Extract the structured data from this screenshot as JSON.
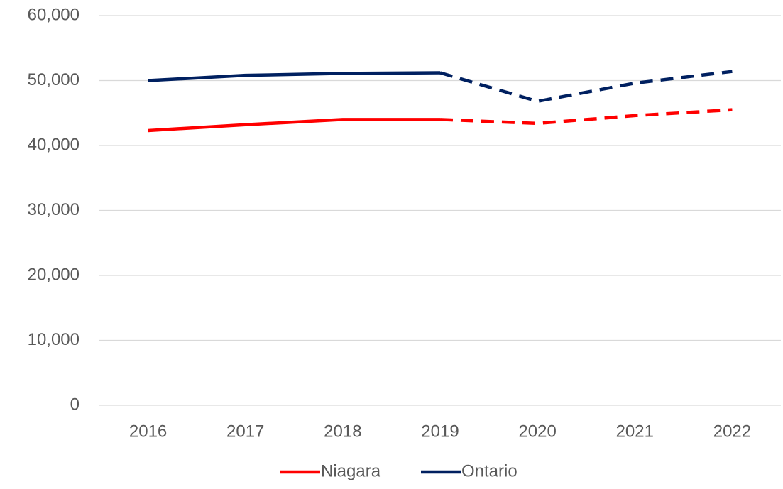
{
  "chart_data": {
    "type": "line",
    "categories": [
      "2016",
      "2017",
      "2018",
      "2019",
      "2020",
      "2021",
      "2022"
    ],
    "series": [
      {
        "name": "Niagara",
        "color": "#ff0000",
        "values": [
          42300,
          43200,
          44000,
          44000,
          43400,
          44600,
          45500
        ]
      },
      {
        "name": "Ontario",
        "color": "#002060",
        "values": [
          50000,
          50800,
          51100,
          51200,
          46800,
          49600,
          51400
        ]
      }
    ],
    "dash_start": "2019",
    "ylim": [
      0,
      60000
    ],
    "yticks": [
      0,
      {
        "value": 10000,
        "label": "10,000"
      },
      {
        "value": 20000,
        "label": "20,000"
      },
      {
        "value": 30000,
        "label": "30,000"
      },
      {
        "value": 40000,
        "label": "40,000"
      },
      {
        "value": 50000,
        "label": "50,000"
      },
      {
        "value": 60000,
        "label": "60,000"
      }
    ],
    "grid": true,
    "legend": "bottom"
  }
}
